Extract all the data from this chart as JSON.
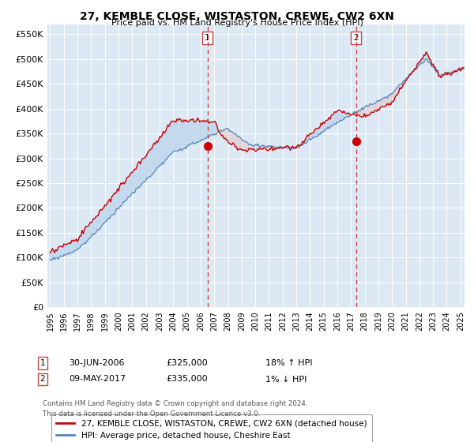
{
  "title": "27, KEMBLE CLOSE, WISTASTON, CREWE, CW2 6XN",
  "subtitle": "Price paid vs. HM Land Registry's House Price Index (HPI)",
  "ytick_values": [
    0,
    50000,
    100000,
    150000,
    200000,
    250000,
    300000,
    350000,
    400000,
    450000,
    500000,
    550000
  ],
  "ylim": [
    0,
    570000
  ],
  "xlim_start": 1994.8,
  "xlim_end": 2025.3,
  "plot_bg_color": "#dce9f5",
  "line1_color": "#cc0000",
  "line2_color": "#5588bb",
  "fill_color": "#c5d9ee",
  "line1_label": "27, KEMBLE CLOSE, WISTASTON, CREWE, CW2 6XN (detached house)",
  "line2_label": "HPI: Average price, detached house, Cheshire East",
  "marker1_date": 2006.5,
  "marker1_price": 325000,
  "marker1_label": "1",
  "marker2_date": 2017.36,
  "marker2_price": 335000,
  "marker2_label": "2",
  "footnote_line1": "Contains HM Land Registry data © Crown copyright and database right 2024.",
  "footnote_line2": "This data is licensed under the Open Government Licence v3.0.",
  "annotation1_date": "30-JUN-2006",
  "annotation1_price": "£325,000",
  "annotation1_hpi": "18% ↑ HPI",
  "annotation2_date": "09-MAY-2017",
  "annotation2_price": "£335,000",
  "annotation2_hpi": "1% ↓ HPI"
}
